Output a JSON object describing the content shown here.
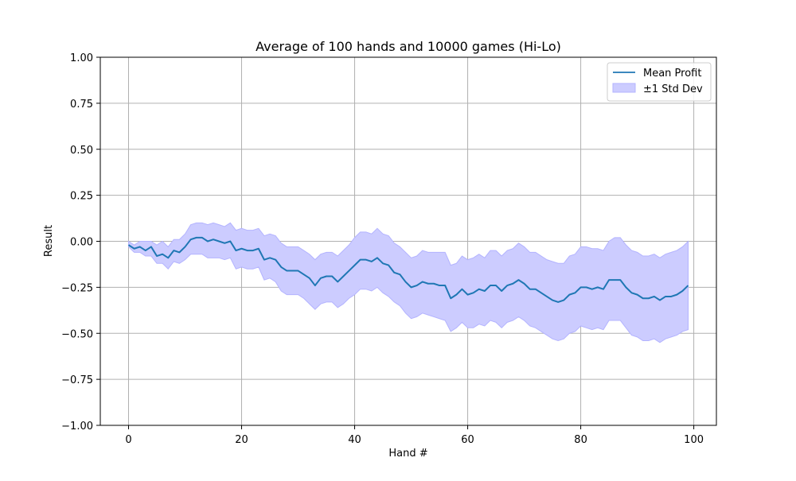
{
  "chart_data": {
    "type": "line",
    "title": "Average of 100 hands and 10000 games (Hi-Lo)",
    "xlabel": "Hand #",
    "ylabel": "Result",
    "xlim": [
      -5,
      104
    ],
    "ylim": [
      -1.0,
      1.0
    ],
    "xticks": [
      0,
      20,
      40,
      60,
      80,
      100
    ],
    "xtick_labels": [
      "0",
      "20",
      "40",
      "60",
      "80",
      "100"
    ],
    "yticks": [
      -1.0,
      -0.75,
      -0.5,
      -0.25,
      0.0,
      0.25,
      0.5,
      0.75,
      1.0
    ],
    "ytick_labels": [
      "−1.00",
      "−0.75",
      "−0.50",
      "−0.25",
      "0.00",
      "0.25",
      "0.50",
      "0.75",
      "1.00"
    ],
    "grid": true,
    "legend_position": "top-right",
    "colors": {
      "line": "#1f77b4",
      "band_fill": "#ccccff",
      "band_edge": "#b3b3ff",
      "grid": "#b0b0b0"
    },
    "series": [
      {
        "name": "Mean Profit",
        "kind": "line",
        "x": [
          0,
          1,
          2,
          3,
          4,
          5,
          6,
          7,
          8,
          9,
          10,
          11,
          12,
          13,
          14,
          15,
          16,
          17,
          18,
          19,
          20,
          21,
          22,
          23,
          24,
          25,
          26,
          27,
          28,
          29,
          30,
          31,
          32,
          33,
          34,
          35,
          36,
          37,
          38,
          39,
          40,
          41,
          42,
          43,
          44,
          45,
          46,
          47,
          48,
          49,
          50,
          51,
          52,
          53,
          54,
          55,
          56,
          57,
          58,
          59,
          60,
          61,
          62,
          63,
          64,
          65,
          66,
          67,
          68,
          69,
          70,
          71,
          72,
          73,
          74,
          75,
          76,
          77,
          78,
          79,
          80,
          81,
          82,
          83,
          84,
          85,
          86,
          87,
          88,
          89,
          90,
          91,
          92,
          93,
          94,
          95,
          96,
          97,
          98,
          99
        ],
        "y": [
          -0.02,
          -0.04,
          -0.03,
          -0.05,
          -0.03,
          -0.08,
          -0.07,
          -0.09,
          -0.05,
          -0.06,
          -0.03,
          0.01,
          0.02,
          0.02,
          0.0,
          0.01,
          0.0,
          -0.01,
          0.0,
          -0.05,
          -0.04,
          -0.05,
          -0.05,
          -0.04,
          -0.1,
          -0.09,
          -0.1,
          -0.14,
          -0.16,
          -0.16,
          -0.16,
          -0.18,
          -0.2,
          -0.24,
          -0.2,
          -0.19,
          -0.19,
          -0.22,
          -0.19,
          -0.16,
          -0.13,
          -0.1,
          -0.1,
          -0.11,
          -0.09,
          -0.12,
          -0.13,
          -0.17,
          -0.18,
          -0.22,
          -0.25,
          -0.24,
          -0.22,
          -0.23,
          -0.23,
          -0.24,
          -0.24,
          -0.31,
          -0.29,
          -0.26,
          -0.29,
          -0.28,
          -0.26,
          -0.27,
          -0.24,
          -0.24,
          -0.27,
          -0.24,
          -0.23,
          -0.21,
          -0.23,
          -0.26,
          -0.26,
          -0.28,
          -0.3,
          -0.32,
          -0.33,
          -0.32,
          -0.29,
          -0.28,
          -0.25,
          -0.25,
          -0.26,
          -0.25,
          -0.26,
          -0.21,
          -0.21,
          -0.21,
          -0.25,
          -0.28,
          -0.29,
          -0.31,
          -0.31,
          -0.3,
          -0.32,
          -0.3,
          -0.3,
          -0.29,
          -0.27,
          -0.24
        ]
      },
      {
        "name": "±1 Std Dev",
        "kind": "band",
        "x": [
          0,
          1,
          2,
          3,
          4,
          5,
          6,
          7,
          8,
          9,
          10,
          11,
          12,
          13,
          14,
          15,
          16,
          17,
          18,
          19,
          20,
          21,
          22,
          23,
          24,
          25,
          26,
          27,
          28,
          29,
          30,
          31,
          32,
          33,
          34,
          35,
          36,
          37,
          38,
          39,
          40,
          41,
          42,
          43,
          44,
          45,
          46,
          47,
          48,
          49,
          50,
          51,
          52,
          53,
          54,
          55,
          56,
          57,
          58,
          59,
          60,
          61,
          62,
          63,
          64,
          65,
          66,
          67,
          68,
          69,
          70,
          71,
          72,
          73,
          74,
          75,
          76,
          77,
          78,
          79,
          80,
          81,
          82,
          83,
          84,
          85,
          86,
          87,
          88,
          89,
          90,
          91,
          92,
          93,
          94,
          95,
          96,
          97,
          98,
          99
        ],
        "upper": [
          0.0,
          -0.02,
          0.0,
          0.0,
          0.0,
          -0.02,
          0.0,
          -0.03,
          0.01,
          0.01,
          0.04,
          0.09,
          0.1,
          0.1,
          0.09,
          0.1,
          0.09,
          0.08,
          0.1,
          0.06,
          0.07,
          0.06,
          0.06,
          0.07,
          0.03,
          0.04,
          0.03,
          -0.01,
          -0.03,
          -0.03,
          -0.03,
          -0.05,
          -0.07,
          -0.1,
          -0.07,
          -0.06,
          -0.06,
          -0.08,
          -0.05,
          -0.02,
          0.02,
          0.05,
          0.05,
          0.04,
          0.07,
          0.04,
          0.03,
          -0.01,
          -0.03,
          -0.06,
          -0.09,
          -0.08,
          -0.05,
          -0.06,
          -0.06,
          -0.06,
          -0.06,
          -0.13,
          -0.12,
          -0.08,
          -0.1,
          -0.09,
          -0.07,
          -0.09,
          -0.05,
          -0.05,
          -0.08,
          -0.05,
          -0.04,
          -0.01,
          -0.03,
          -0.06,
          -0.06,
          -0.08,
          -0.1,
          -0.11,
          -0.12,
          -0.12,
          -0.08,
          -0.07,
          -0.03,
          -0.03,
          -0.04,
          -0.04,
          -0.05,
          0.0,
          0.02,
          0.02,
          -0.02,
          -0.05,
          -0.06,
          -0.08,
          -0.08,
          -0.07,
          -0.09,
          -0.07,
          -0.06,
          -0.05,
          -0.03,
          0.0
        ],
        "lower": [
          -0.03,
          -0.06,
          -0.06,
          -0.08,
          -0.08,
          -0.12,
          -0.12,
          -0.15,
          -0.11,
          -0.12,
          -0.1,
          -0.07,
          -0.07,
          -0.07,
          -0.09,
          -0.09,
          -0.09,
          -0.1,
          -0.09,
          -0.15,
          -0.14,
          -0.15,
          -0.15,
          -0.14,
          -0.21,
          -0.2,
          -0.22,
          -0.27,
          -0.29,
          -0.29,
          -0.29,
          -0.31,
          -0.34,
          -0.37,
          -0.34,
          -0.33,
          -0.33,
          -0.36,
          -0.34,
          -0.31,
          -0.29,
          -0.26,
          -0.26,
          -0.27,
          -0.25,
          -0.28,
          -0.3,
          -0.33,
          -0.35,
          -0.39,
          -0.42,
          -0.41,
          -0.39,
          -0.4,
          -0.41,
          -0.42,
          -0.43,
          -0.49,
          -0.47,
          -0.44,
          -0.47,
          -0.47,
          -0.45,
          -0.46,
          -0.43,
          -0.44,
          -0.47,
          -0.44,
          -0.43,
          -0.41,
          -0.43,
          -0.46,
          -0.47,
          -0.49,
          -0.51,
          -0.53,
          -0.54,
          -0.53,
          -0.5,
          -0.49,
          -0.46,
          -0.47,
          -0.48,
          -0.47,
          -0.48,
          -0.43,
          -0.43,
          -0.43,
          -0.47,
          -0.51,
          -0.52,
          -0.54,
          -0.54,
          -0.53,
          -0.55,
          -0.53,
          -0.52,
          -0.51,
          -0.49,
          -0.48
        ]
      }
    ]
  }
}
